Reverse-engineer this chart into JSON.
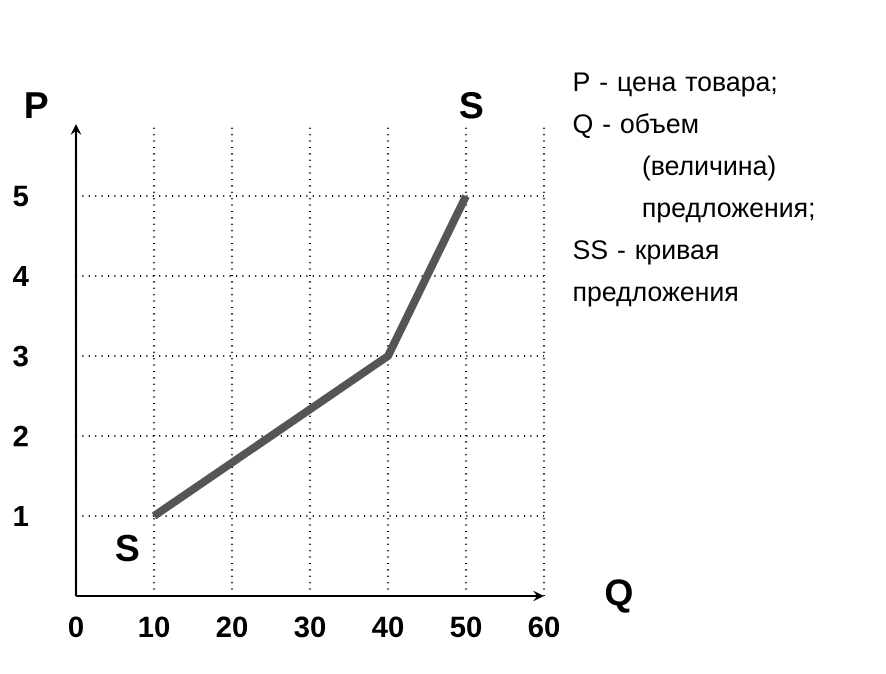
{
  "chart_data": {
    "type": "line",
    "xlabel": "Q",
    "ylabel": "P",
    "x": [
      10,
      25,
      40,
      45,
      50
    ],
    "series": [
      {
        "color": "#555555",
        "values": [
          1,
          2,
          3,
          4,
          5
        ]
      }
    ],
    "xlim": [
      0,
      60
    ],
    "ylim": [
      0,
      5.9
    ],
    "xticks": [
      0,
      10,
      20,
      30,
      40,
      50,
      60
    ],
    "yticks": [
      1,
      2,
      3,
      4,
      5
    ],
    "grid": true,
    "annotations": [
      "S",
      "S",
      "P - цена товара;",
      "Q - объем (величина) предложения;",
      "SS - кривая предложения"
    ]
  }
}
